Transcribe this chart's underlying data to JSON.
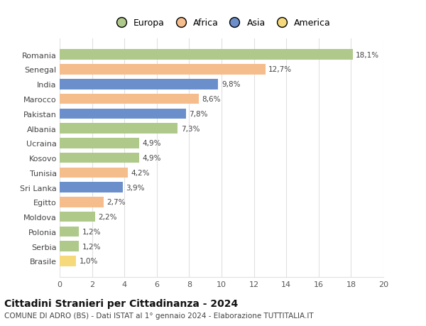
{
  "categories": [
    "Brasile",
    "Serbia",
    "Polonia",
    "Moldova",
    "Egitto",
    "Sri Lanka",
    "Tunisia",
    "Kosovo",
    "Ucraina",
    "Albania",
    "Pakistan",
    "Marocco",
    "India",
    "Senegal",
    "Romania"
  ],
  "values": [
    1.0,
    1.2,
    1.2,
    2.2,
    2.7,
    3.9,
    4.2,
    4.9,
    4.9,
    7.3,
    7.8,
    8.6,
    9.8,
    12.7,
    18.1
  ],
  "continents": [
    "America",
    "Europa",
    "Europa",
    "Europa",
    "Africa",
    "Asia",
    "Africa",
    "Europa",
    "Europa",
    "Europa",
    "Asia",
    "Africa",
    "Asia",
    "Africa",
    "Europa"
  ],
  "continent_colors": {
    "Europa": "#aec98a",
    "Africa": "#f5bc8c",
    "Asia": "#6b8fca",
    "America": "#f5d97a"
  },
  "legend_order": [
    "Europa",
    "Africa",
    "Asia",
    "America"
  ],
  "title": "Cittadini Stranieri per Cittadinanza - 2024",
  "subtitle": "COMUNE DI ADRO (BS) - Dati ISTAT al 1° gennaio 2024 - Elaborazione TUTTITALIA.IT",
  "xlim": [
    0,
    20
  ],
  "xticks": [
    0,
    2,
    4,
    6,
    8,
    10,
    12,
    14,
    16,
    18,
    20
  ],
  "background_color": "#ffffff",
  "grid_color": "#e0e0e0"
}
